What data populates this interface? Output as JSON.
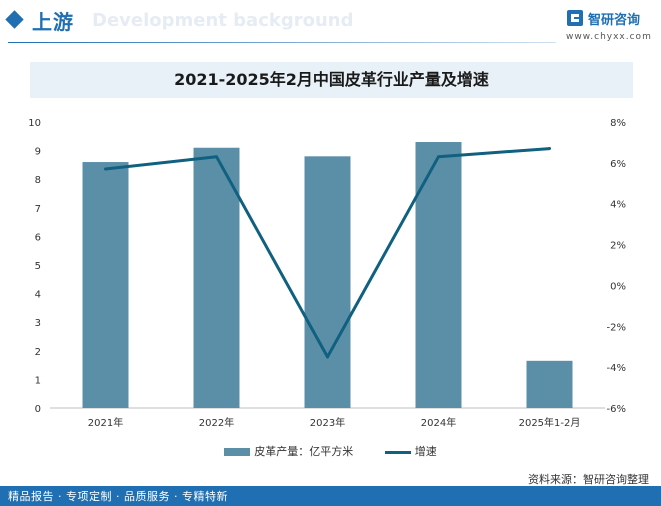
{
  "header": {
    "section_title": "上游",
    "watermark_text": "Development background",
    "brand_name": "智研咨询",
    "brand_url": "www.chyxx.com"
  },
  "chart_data": {
    "type": "bar",
    "title": "2021-2025年2月中国皮革行业产量及增速",
    "categories": [
      "2021年",
      "2022年",
      "2023年",
      "2024年",
      "2025年1-2月"
    ],
    "series": [
      {
        "name": "皮革产量：亿平方米",
        "type": "bar",
        "axis": "left",
        "values": [
          8.6,
          9.1,
          8.8,
          9.3,
          1.65
        ]
      },
      {
        "name": "增速",
        "type": "line",
        "axis": "right",
        "values": [
          5.7,
          6.3,
          -3.5,
          6.3,
          6.7
        ]
      }
    ],
    "y_left": {
      "min": 0,
      "max": 10,
      "ticks": [
        "0",
        "1",
        "2",
        "3",
        "4",
        "5",
        "6",
        "7",
        "8",
        "9",
        "10"
      ]
    },
    "y_right": {
      "min": -6,
      "max": 8,
      "ticks": [
        "-6%",
        "-4%",
        "-2%",
        "0%",
        "2%",
        "4%",
        "6%",
        "8%"
      ]
    },
    "legend_position": "bottom",
    "grid": false,
    "colors": {
      "bar": "#5b8fa8",
      "line": "#10607f"
    }
  },
  "footer": {
    "source": "资料来源：智研咨询整理",
    "tagline": "精品报告 · 专项定制 · 品质服务 · 专精特新"
  }
}
